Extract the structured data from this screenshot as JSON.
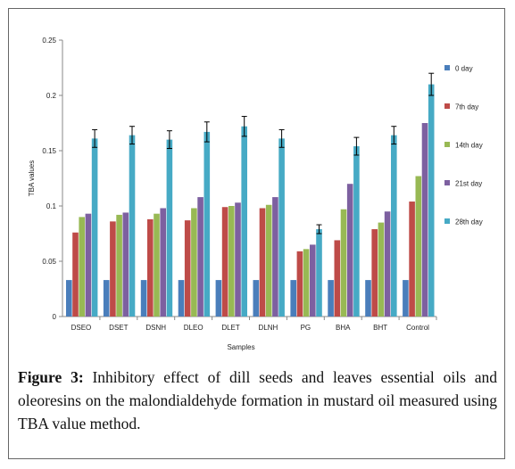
{
  "caption": {
    "label": "Figure 3:",
    "text": " Inhibitory effect of dill seeds and leaves essential oils and oleoresins on the malondialdehyde formation in mustard oil measured using TBA value method."
  },
  "chart_data": {
    "type": "bar",
    "title": "",
    "xlabel": "Samples",
    "ylabel": "TBA values",
    "ylim": [
      0,
      0.25
    ],
    "yticks": [
      "0",
      "0.05",
      "0.1",
      "0.15",
      "0.2",
      "0.25"
    ],
    "grid": false,
    "legend_position": "right",
    "categories": [
      "DSEO",
      "DSET",
      "DSNH",
      "DLEO",
      "DLET",
      "DLNH",
      "PG",
      "BHA",
      "BHT",
      "Control"
    ],
    "series": [
      {
        "name": "0 day",
        "color": "#4a7ebb",
        "values": [
          0.033,
          0.033,
          0.033,
          0.033,
          0.033,
          0.033,
          0.033,
          0.033,
          0.033,
          0.033
        ]
      },
      {
        "name": "7th day",
        "color": "#be4b48",
        "values": [
          0.076,
          0.086,
          0.088,
          0.087,
          0.099,
          0.098,
          0.059,
          0.069,
          0.079,
          0.104
        ]
      },
      {
        "name": "14th day",
        "color": "#98b954",
        "values": [
          0.09,
          0.092,
          0.093,
          0.098,
          0.1,
          0.101,
          0.061,
          0.097,
          0.085,
          0.127
        ]
      },
      {
        "name": "21st day",
        "color": "#7d60a0",
        "values": [
          0.093,
          0.094,
          0.098,
          0.108,
          0.103,
          0.108,
          0.065,
          0.12,
          0.095,
          0.175
        ]
      },
      {
        "name": "28th day",
        "color": "#46aac5",
        "values": [
          0.161,
          0.164,
          0.16,
          0.167,
          0.172,
          0.161,
          0.079,
          0.154,
          0.164,
          0.21
        ]
      }
    ],
    "error_bars": {
      "series": "28th day",
      "values": [
        0.008,
        0.008,
        0.008,
        0.009,
        0.009,
        0.008,
        0.004,
        0.008,
        0.008,
        0.01
      ]
    }
  }
}
